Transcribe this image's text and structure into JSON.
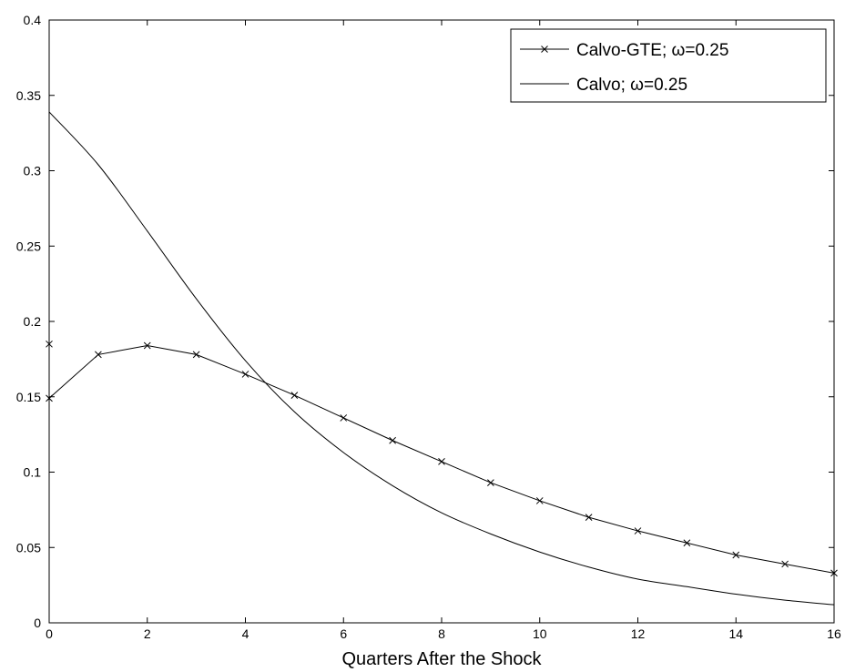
{
  "chart_data": {
    "type": "line",
    "title": "",
    "xlabel": "Quarters After the Shock",
    "ylabel": "",
    "xlim": [
      0,
      16
    ],
    "ylim": [
      0,
      0.4
    ],
    "xticks": [
      "0",
      "2",
      "4",
      "6",
      "8",
      "10",
      "12",
      "14",
      "16"
    ],
    "yticks": [
      "0",
      "0.05",
      "0.1",
      "0.15",
      "0.2",
      "0.25",
      "0.3",
      "0.35",
      "0.4"
    ],
    "grid": false,
    "legend_position": "top-right",
    "series": [
      {
        "name": "Calvo-GTE;  ω=0.25",
        "marker": "x",
        "color": "#000000",
        "x": [
          0,
          1,
          2,
          3,
          4,
          5,
          6,
          7,
          8,
          9,
          10,
          11,
          12,
          13,
          14,
          15,
          16
        ],
        "y": [
          0.149,
          0.178,
          0.184,
          0.178,
          0.165,
          0.151,
          0.136,
          0.121,
          0.107,
          0.093,
          0.081,
          0.07,
          0.061,
          0.053,
          0.045,
          0.039,
          0.033
        ]
      },
      {
        "name": "Calvo; ω=0.25",
        "marker": "none",
        "color": "#000000",
        "x": [
          0,
          1,
          2,
          3,
          4,
          5,
          6,
          7,
          8,
          9,
          10,
          11,
          12,
          13,
          14,
          15,
          16
        ],
        "y": [
          0.339,
          0.304,
          0.26,
          0.215,
          0.174,
          0.14,
          0.113,
          0.091,
          0.073,
          0.059,
          0.047,
          0.037,
          0.029,
          0.024,
          0.019,
          0.015,
          0.012
        ]
      }
    ],
    "annotations": [
      {
        "type": "marker",
        "marker": "x",
        "x": 0,
        "y": 0.185
      }
    ]
  }
}
